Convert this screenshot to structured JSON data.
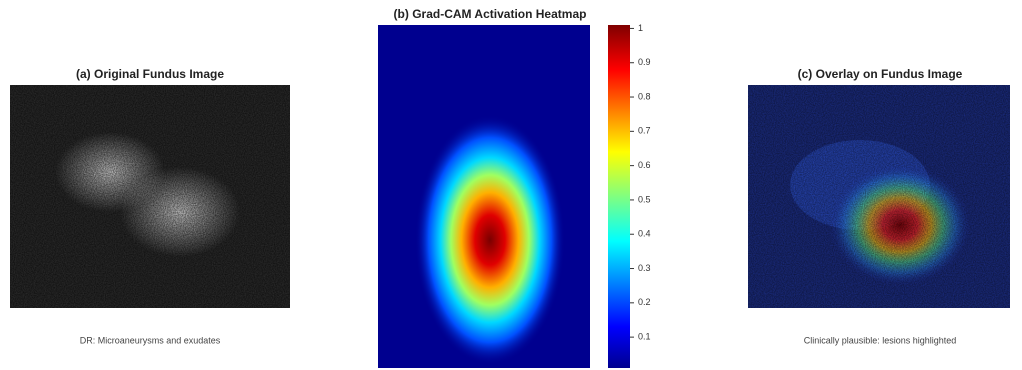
{
  "panels": [
    {
      "title": "(a) Original Fundus Image",
      "caption": "DR: Microaneurysms and exudates"
    },
    {
      "title": "(b) Grad-CAM Activation Heatmap"
    },
    {
      "title": "(c) Overlay on Fundus Image",
      "caption": "Clinically plausible: lesions highlighted"
    }
  ],
  "colorbar": {
    "lim": [
      0.01,
      1.01
    ],
    "ticks": [
      0.1,
      0.2,
      0.3,
      0.4,
      0.5,
      0.6,
      0.7,
      0.8,
      0.9,
      1
    ]
  }
}
